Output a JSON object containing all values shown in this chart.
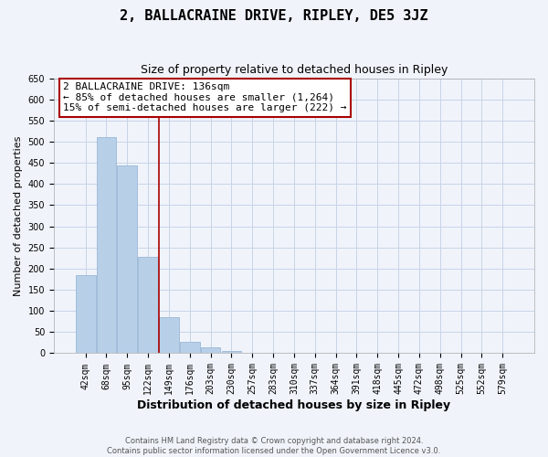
{
  "title": "2, BALLACRAINE DRIVE, RIPLEY, DE5 3JZ",
  "subtitle": "Size of property relative to detached houses in Ripley",
  "xlabel": "Distribution of detached houses by size in Ripley",
  "ylabel": "Number of detached properties",
  "footer_line1": "Contains HM Land Registry data © Crown copyright and database right 2024.",
  "footer_line2": "Contains public sector information licensed under the Open Government Licence v3.0.",
  "categories": [
    "42sqm",
    "68sqm",
    "95sqm",
    "122sqm",
    "149sqm",
    "176sqm",
    "203sqm",
    "230sqm",
    "257sqm",
    "283sqm",
    "310sqm",
    "337sqm",
    "364sqm",
    "391sqm",
    "418sqm",
    "445sqm",
    "472sqm",
    "498sqm",
    "525sqm",
    "552sqm",
    "579sqm"
  ],
  "values": [
    185,
    510,
    443,
    228,
    85,
    28,
    13,
    5,
    2,
    2,
    2,
    0,
    0,
    0,
    0,
    2,
    0,
    0,
    0,
    0,
    2
  ],
  "bar_color": "#b8cfe8",
  "bar_edge_color": "#9ab8d8",
  "red_line_x": 3.52,
  "annotation_title": "2 BALLACRAINE DRIVE: 136sqm",
  "annotation_line1": "← 85% of detached houses are smaller (1,264)",
  "annotation_line2": "15% of semi-detached houses are larger (222) →",
  "annotation_box_color": "#ffffff",
  "annotation_box_edge_color": "#aa0000",
  "ylim": [
    0,
    650
  ],
  "yticks": [
    0,
    50,
    100,
    150,
    200,
    250,
    300,
    350,
    400,
    450,
    500,
    550,
    600,
    650
  ],
  "background_color": "#f0f4fa",
  "grid_color": "#c8d4e8",
  "title_fontsize": 11,
  "subtitle_fontsize": 9,
  "annotation_fontsize": 8,
  "xlabel_fontsize": 9,
  "ylabel_fontsize": 8,
  "tick_fontsize": 7,
  "footer_fontsize": 6
}
